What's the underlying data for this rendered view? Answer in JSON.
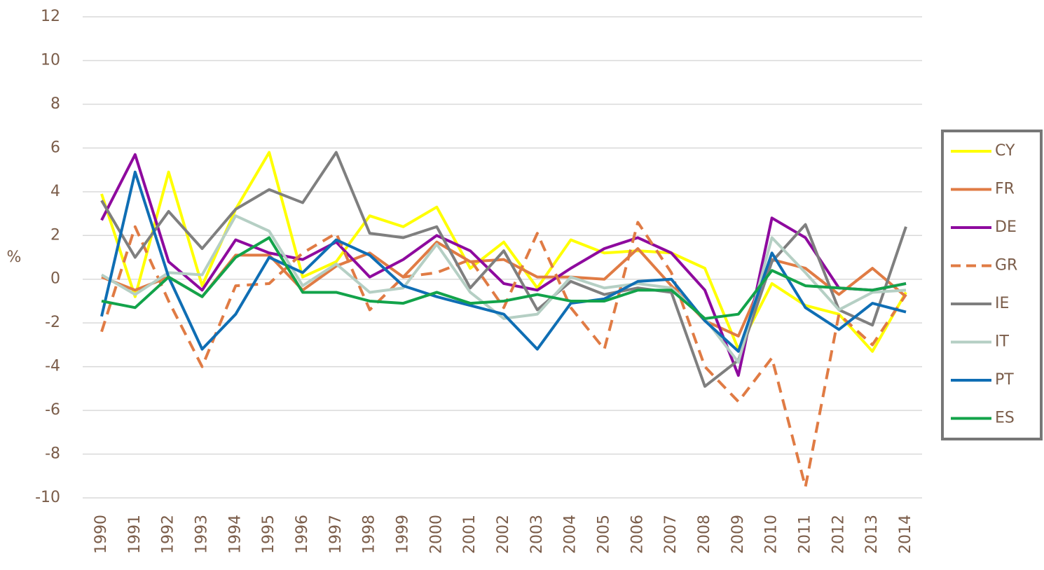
{
  "chart_data": {
    "type": "line",
    "y_label": "%",
    "categories": [
      "1990",
      "1991",
      "1992",
      "1993",
      "1994",
      "1995",
      "1996",
      "1997",
      "1998",
      "1999",
      "2000",
      "2001",
      "2002",
      "2003",
      "2004",
      "2005",
      "2006",
      "2007",
      "2008",
      "2009",
      "2010",
      "2011",
      "2012",
      "2013",
      "2014"
    ],
    "ylim": [
      -10,
      12
    ],
    "yticks": [
      -10,
      -8,
      -6,
      -4,
      -2,
      0,
      2,
      4,
      6,
      8,
      10,
      12
    ],
    "grid": true,
    "legend": "right",
    "series": [
      {
        "name": "CY",
        "color": "#ffff00",
        "values": [
          3.9,
          -0.8,
          4.9,
          -0.3,
          3.2,
          5.8,
          0.1,
          0.8,
          2.9,
          2.4,
          3.3,
          0.5,
          1.7,
          -0.4,
          1.8,
          1.2,
          1.3,
          1.2,
          0.5,
          -3.2,
          -0.2,
          -1.2,
          -1.6,
          -3.3,
          -0.6
        ]
      },
      {
        "name": "FR",
        "color": "#e07b44",
        "values": [
          0.1,
          -0.5,
          0.1,
          -0.8,
          1.1,
          1.1,
          -0.5,
          0.6,
          1.2,
          0.1,
          1.7,
          0.8,
          0.9,
          0.1,
          0.1,
          0.0,
          1.4,
          -0.3,
          -1.9,
          -2.6,
          0.9,
          0.5,
          -0.7,
          0.5,
          -0.8
        ]
      },
      {
        "name": "DE",
        "color": "#8e0a9e",
        "values": [
          2.7,
          5.7,
          0.8,
          -0.5,
          1.8,
          1.2,
          0.9,
          1.7,
          0.1,
          0.9,
          2.0,
          1.3,
          -0.2,
          -0.5,
          0.5,
          1.4,
          1.9,
          1.2,
          -0.5,
          -4.4,
          2.8,
          1.9,
          -0.4,
          -0.5,
          -0.2
        ]
      },
      {
        "name": "GR",
        "color": "#e07b44",
        "dashed": true,
        "values": [
          -2.4,
          2.4,
          -1.0,
          -4.0,
          -0.3,
          -0.2,
          1.2,
          2.1,
          -1.4,
          0.1,
          0.3,
          0.9,
          -1.3,
          2.1,
          -1.3,
          -3.2,
          2.6,
          0.3,
          -4.0,
          -5.6,
          -3.6,
          -9.5,
          -1.6,
          -3.0,
          -0.7
        ]
      },
      {
        "name": "IE",
        "color": "#7f7f7f",
        "values": [
          3.6,
          1.0,
          3.1,
          1.4,
          3.2,
          4.1,
          3.5,
          5.8,
          2.1,
          1.9,
          2.4,
          -0.4,
          1.3,
          -1.4,
          -0.1,
          -0.7,
          -0.4,
          -0.6,
          -4.9,
          -3.7,
          0.8,
          2.5,
          -1.4,
          -2.1,
          2.4
        ]
      },
      {
        "name": "IT",
        "color": "#b5cfc4",
        "values": [
          0.2,
          -0.7,
          0.3,
          0.2,
          2.9,
          2.2,
          -0.3,
          0.7,
          -0.6,
          -0.4,
          1.6,
          -0.6,
          -1.8,
          -1.6,
          0.1,
          -0.4,
          -0.2,
          -0.4,
          -1.8,
          -3.8,
          1.9,
          0.3,
          -1.4,
          -0.6,
          -0.5
        ]
      },
      {
        "name": "PT",
        "color": "#0f6eb4",
        "values": [
          -1.7,
          4.9,
          0.1,
          -3.2,
          -1.6,
          1.0,
          0.3,
          1.8,
          1.1,
          -0.3,
          -0.8,
          -1.2,
          -1.6,
          -3.2,
          -1.1,
          -0.9,
          -0.1,
          0.0,
          -1.9,
          -3.3,
          1.2,
          -1.3,
          -2.3,
          -1.1,
          -1.5
        ]
      },
      {
        "name": "ES",
        "color": "#12a34a",
        "values": [
          -1.0,
          -1.3,
          0.1,
          -0.8,
          1.0,
          1.9,
          -0.6,
          -0.6,
          -1.0,
          -1.1,
          -0.6,
          -1.1,
          -1.0,
          -0.7,
          -1.0,
          -1.0,
          -0.5,
          -0.5,
          -1.8,
          -1.6,
          0.4,
          -0.3,
          -0.4,
          -0.5,
          -0.2
        ]
      }
    ]
  }
}
